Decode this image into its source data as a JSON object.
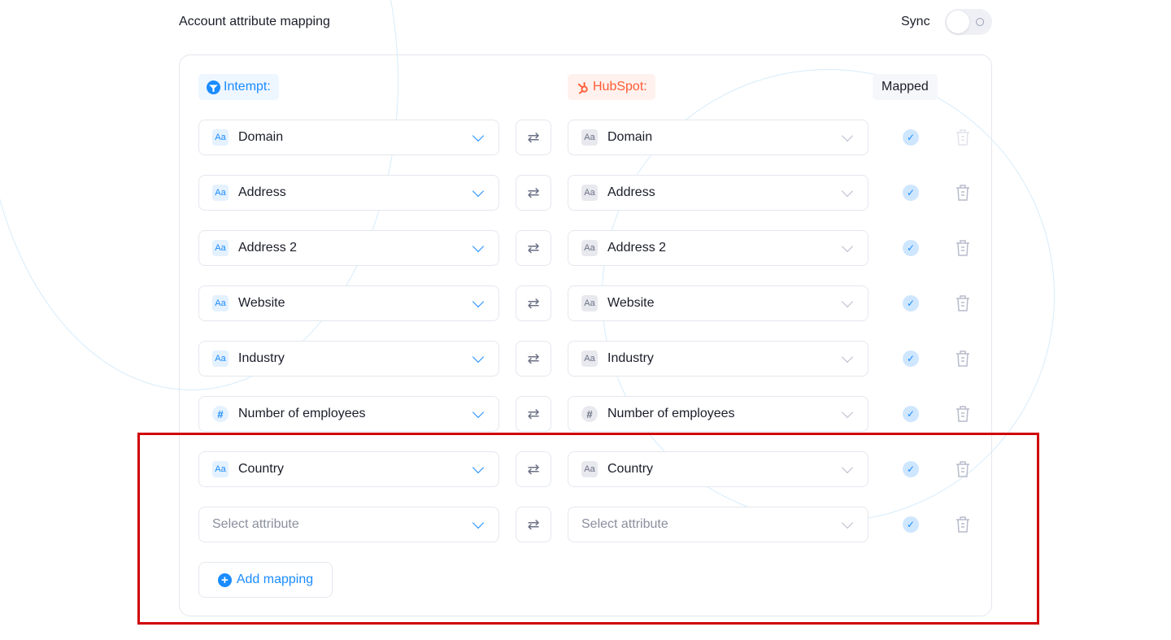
{
  "header": {
    "title": "Account attribute mapping",
    "sync_label": "Sync",
    "sync_on": false
  },
  "columns": {
    "intempt": "Intempt:",
    "hubspot": "HubSpot:",
    "mapped": "Mapped"
  },
  "colors": {
    "accent": "#1a8cff",
    "hubspot": "#ff5c35",
    "highlight": "#d00000"
  },
  "rows": [
    {
      "left": "Domain",
      "right": "Domain",
      "type": "text",
      "mapped": true,
      "trash_disabled": true
    },
    {
      "left": "Address",
      "right": "Address",
      "type": "text",
      "mapped": true
    },
    {
      "left": "Address 2",
      "right": "Address 2",
      "type": "text",
      "mapped": true
    },
    {
      "left": "Website",
      "right": "Website",
      "type": "text",
      "mapped": true
    },
    {
      "left": "Industry",
      "right": "Industry",
      "type": "text",
      "mapped": true
    },
    {
      "left": "Number of employees",
      "right": "Number of employees",
      "type": "number",
      "mapped": true
    },
    {
      "left": "Country",
      "right": "Country",
      "type": "text",
      "mapped": true
    },
    {
      "left": null,
      "right": null,
      "type": null,
      "mapped": true,
      "placeholder": "Select attribute"
    }
  ],
  "add_label": "Add mapping"
}
